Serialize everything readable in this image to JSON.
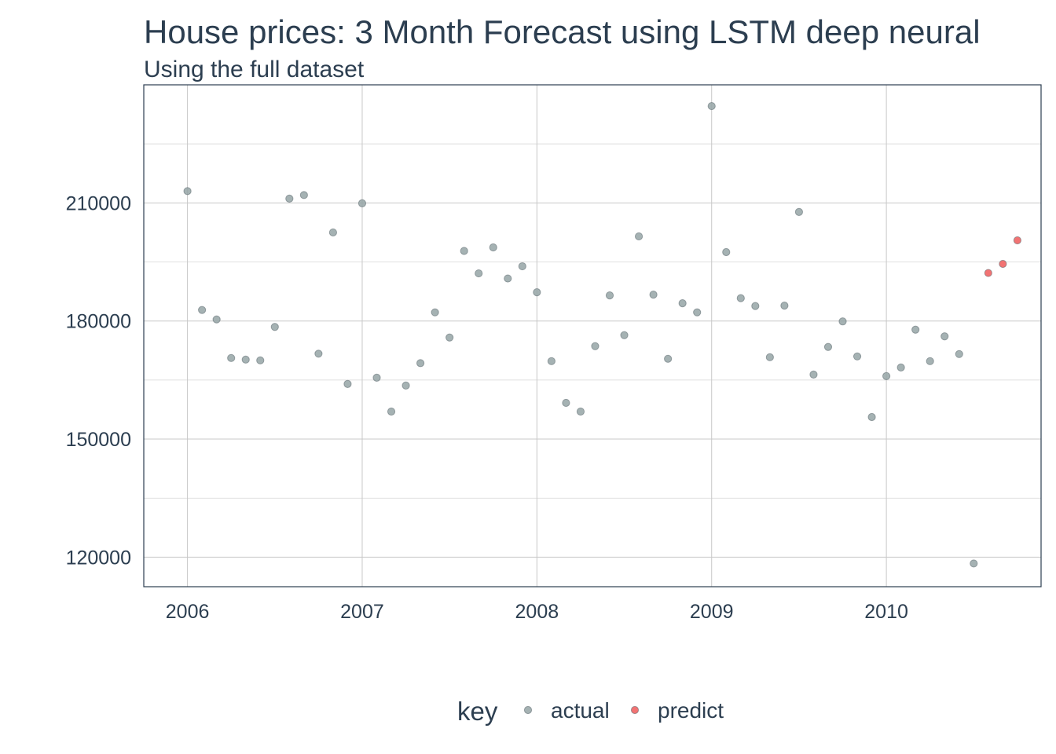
{
  "chart_data": {
    "type": "scatter",
    "title": "House prices: 3 Month Forecast using LSTM deep neural",
    "subtitle": "Using the full dataset",
    "xlabel": "",
    "ylabel": "",
    "x_ticks": [
      "2006",
      "2007",
      "2008",
      "2009",
      "2010"
    ],
    "y_ticks": [
      120000,
      150000,
      180000,
      210000
    ],
    "xlim": [
      "2005-10-01",
      "2010-11-20"
    ],
    "ylim": [
      112500,
      240000
    ],
    "grid": true,
    "legend": {
      "title": "key",
      "position": "bottom"
    },
    "series": [
      {
        "name": "actual",
        "color": "#95a5a6",
        "points": [
          [
            "2006-01",
            213000
          ],
          [
            "2006-02",
            182800
          ],
          [
            "2006-03",
            180400
          ],
          [
            "2006-04",
            170600
          ],
          [
            "2006-05",
            170200
          ],
          [
            "2006-06",
            170000
          ],
          [
            "2006-07",
            178500
          ],
          [
            "2006-08",
            211100
          ],
          [
            "2006-09",
            212000
          ],
          [
            "2006-10",
            171700
          ],
          [
            "2006-11",
            202500
          ],
          [
            "2006-12",
            164000
          ],
          [
            "2007-01",
            209900
          ],
          [
            "2007-02",
            165600
          ],
          [
            "2007-03",
            157000
          ],
          [
            "2007-04",
            163600
          ],
          [
            "2007-05",
            169300
          ],
          [
            "2007-06",
            182200
          ],
          [
            "2007-07",
            175800
          ],
          [
            "2007-08",
            197800
          ],
          [
            "2007-09",
            192100
          ],
          [
            "2007-10",
            198700
          ],
          [
            "2007-11",
            190800
          ],
          [
            "2007-12",
            193900
          ],
          [
            "2008-01",
            187300
          ],
          [
            "2008-02",
            169800
          ],
          [
            "2008-03",
            159200
          ],
          [
            "2008-04",
            157000
          ],
          [
            "2008-05",
            173600
          ],
          [
            "2008-06",
            186500
          ],
          [
            "2008-07",
            176400
          ],
          [
            "2008-08",
            201500
          ],
          [
            "2008-09",
            186700
          ],
          [
            "2008-10",
            170400
          ],
          [
            "2008-11",
            184500
          ],
          [
            "2008-12",
            182200
          ],
          [
            "2009-01",
            234600
          ],
          [
            "2009-02",
            197500
          ],
          [
            "2009-03",
            185800
          ],
          [
            "2009-04",
            183800
          ],
          [
            "2009-05",
            170800
          ],
          [
            "2009-06",
            183900
          ],
          [
            "2009-07",
            207700
          ],
          [
            "2009-08",
            166400
          ],
          [
            "2009-09",
            173400
          ],
          [
            "2009-10",
            179900
          ],
          [
            "2009-11",
            171000
          ],
          [
            "2009-12",
            155600
          ],
          [
            "2010-01",
            166000
          ],
          [
            "2010-02",
            168200
          ],
          [
            "2010-03",
            177800
          ],
          [
            "2010-04",
            169800
          ],
          [
            "2010-05",
            176100
          ],
          [
            "2010-06",
            171600
          ],
          [
            "2010-07",
            118400
          ]
        ]
      },
      {
        "name": "predict",
        "color": "#f05a5a",
        "points": [
          [
            "2010-08",
            192200
          ],
          [
            "2010-09",
            194500
          ],
          [
            "2010-10",
            200500
          ]
        ]
      }
    ]
  }
}
